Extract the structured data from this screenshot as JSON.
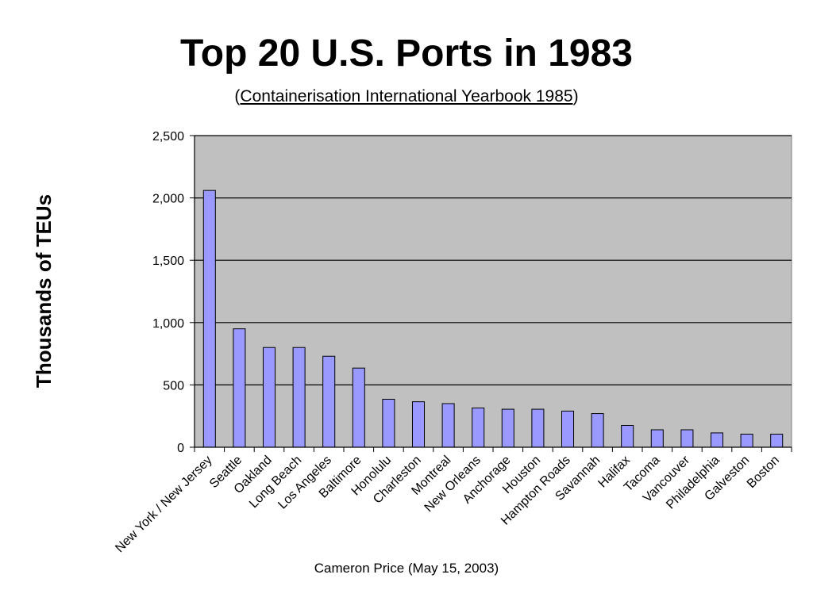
{
  "slide": {
    "title": "Top 20 U.S. Ports in 1983",
    "subtitle_open": "(",
    "subtitle_link": "Containerisation International Yearbook 1985",
    "subtitle_close": ")",
    "credit": "Cameron Price (May 15, 2003)"
  },
  "colors": {
    "plot_background": "#c0c0c0",
    "bar_fill": "#9999ff",
    "bar_stroke": "#000000",
    "gridline": "#000000"
  },
  "chart_data": {
    "type": "bar",
    "title": "Top 20 U.S. Ports in 1983",
    "ylabel": "Thousands of TEUs",
    "xlabel": "",
    "ylim": [
      0,
      2500
    ],
    "yticks": [
      0,
      500,
      1000,
      1500,
      2000,
      2500
    ],
    "ytick_labels": [
      "0",
      "500",
      "1,000",
      "1,500",
      "2,000",
      "2,500"
    ],
    "grid": true,
    "categories": [
      "New York / New Jersey",
      "Seattle",
      "Oakland",
      "Long Beach",
      "Los Angeles",
      "Baltimore",
      "Honolulu",
      "Charleston",
      "Montreal",
      "New Orleans",
      "Anchorage",
      "Houston",
      "Hampton Roads",
      "Savannah",
      "Halifax",
      "Tacoma",
      "Vancouver",
      "Philadelphia",
      "Galveston",
      "Boston"
    ],
    "values": [
      2060,
      950,
      800,
      800,
      730,
      635,
      385,
      365,
      350,
      315,
      305,
      305,
      290,
      270,
      175,
      140,
      140,
      115,
      105,
      105
    ]
  }
}
